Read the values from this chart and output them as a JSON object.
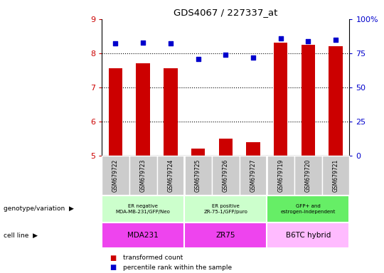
{
  "title": "GDS4067 / 227337_at",
  "samples": [
    "GSM679722",
    "GSM679723",
    "GSM679724",
    "GSM679725",
    "GSM679726",
    "GSM679727",
    "GSM679719",
    "GSM679720",
    "GSM679721"
  ],
  "bar_values": [
    7.55,
    7.7,
    7.55,
    5.2,
    5.5,
    5.4,
    8.3,
    8.25,
    8.2
  ],
  "percentile_values": [
    82,
    83,
    82,
    71,
    74,
    72,
    86,
    84,
    85
  ],
  "ylim_left": [
    5,
    9
  ],
  "ylim_right": [
    0,
    100
  ],
  "yticks_left": [
    5,
    6,
    7,
    8,
    9
  ],
  "yticks_right": [
    0,
    25,
    50,
    75,
    100
  ],
  "bar_color": "#cc0000",
  "dot_color": "#0000cc",
  "bar_width": 0.5,
  "groups": [
    {
      "label": "ER negative\nMDA-MB-231/GFP/Neo",
      "start": 0,
      "end": 3,
      "color": "#ccffcc"
    },
    {
      "label": "ER positive\nZR-75-1/GFP/puro",
      "start": 3,
      "end": 6,
      "color": "#ccffcc"
    },
    {
      "label": "GFP+ and\nestrogen-independent",
      "start": 6,
      "end": 9,
      "color": "#66ee66"
    }
  ],
  "cell_lines": [
    {
      "label": "MDA231",
      "start": 0,
      "end": 3,
      "color": "#ee44ee"
    },
    {
      "label": "ZR75",
      "start": 3,
      "end": 6,
      "color": "#ee44ee"
    },
    {
      "label": "B6TC hybrid",
      "start": 6,
      "end": 9,
      "color": "#ffbbff"
    }
  ],
  "legend_bar_label": "transformed count",
  "legend_dot_label": "percentile rank within the sample",
  "genotype_label": "genotype/variation",
  "cell_line_label": "cell line",
  "tick_color_left": "#cc0000",
  "tick_color_right": "#0000cc",
  "sample_bg_color": "#cccccc",
  "sample_divider_color": "#888888"
}
